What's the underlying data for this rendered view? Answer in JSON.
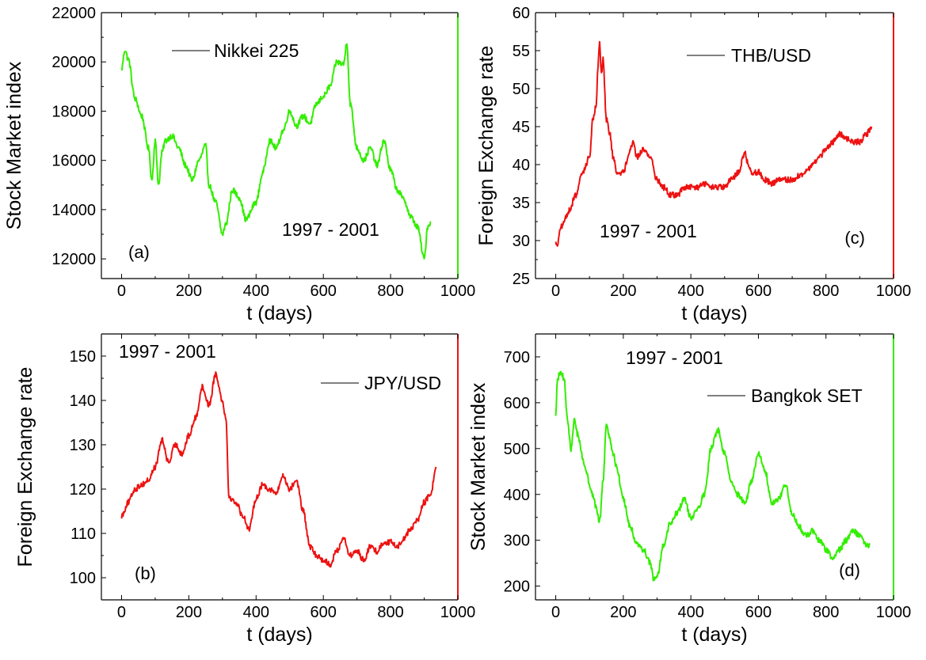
{
  "chart_data": [
    {
      "type": "line",
      "panel_label": "(a)",
      "xlabel": "t (days)",
      "ylabel": "Stock Market index",
      "xlim": [
        -60,
        1000
      ],
      "ylim": [
        11200,
        22000
      ],
      "x_ticks": [
        0,
        200,
        400,
        600,
        800,
        1000
      ],
      "y_ticks": [
        12000,
        14000,
        16000,
        18000,
        20000,
        22000
      ],
      "x_tick_labels": [
        "0",
        "200",
        "400",
        "600",
        "800",
        "1000"
      ],
      "y_tick_labels": [
        "12000",
        "14000",
        "16000",
        "18000",
        "20000",
        "22000"
      ],
      "legend_text": "Nikkei 225",
      "period_text": "1997 - 2001",
      "line_color": "#33ee00",
      "right_axis_color": "#33ee00",
      "series": [
        {
          "name": "Nikkei 225",
          "x": [
            0,
            10,
            20,
            40,
            60,
            80,
            90,
            100,
            110,
            120,
            130,
            150,
            170,
            190,
            210,
            230,
            250,
            260,
            280,
            300,
            310,
            330,
            350,
            370,
            400,
            420,
            440,
            460,
            480,
            500,
            520,
            540,
            560,
            580,
            600,
            620,
            640,
            660,
            670,
            680,
            700,
            720,
            740,
            760,
            780,
            800,
            820,
            840,
            860,
            880,
            900,
            910,
            920
          ],
          "y": [
            19700,
            20500,
            20100,
            18500,
            17800,
            16500,
            15200,
            16800,
            15000,
            16300,
            16800,
            17000,
            16500,
            15800,
            15200,
            16000,
            16600,
            15000,
            14300,
            13000,
            13400,
            14800,
            14500,
            13600,
            14300,
            15500,
            16800,
            16500,
            17200,
            18000,
            17400,
            17800,
            17500,
            18300,
            18600,
            19000,
            20000,
            19900,
            20800,
            18300,
            16500,
            16000,
            16500,
            15800,
            16800,
            15600,
            14800,
            14400,
            13700,
            13300,
            12000,
            13300,
            13500
          ]
        }
      ]
    },
    {
      "type": "line",
      "panel_label": "(b)",
      "xlabel": "t (days)",
      "ylabel": "Foreign Exchange rate",
      "xlim": [
        -60,
        1000
      ],
      "ylim": [
        95,
        155
      ],
      "x_ticks": [
        0,
        200,
        400,
        600,
        800,
        1000
      ],
      "y_ticks": [
        100,
        110,
        120,
        130,
        140,
        150
      ],
      "x_tick_labels": [
        "0",
        "200",
        "400",
        "600",
        "800",
        "1000"
      ],
      "y_tick_labels": [
        "100",
        "110",
        "120",
        "130",
        "140",
        "150"
      ],
      "legend_text": "JPY/USD",
      "period_text": "1997 - 2001",
      "line_color": "#ee1111",
      "right_axis_color": "#ee1111",
      "series": [
        {
          "name": "JPY/USD",
          "x": [
            0,
            20,
            40,
            60,
            80,
            100,
            120,
            140,
            160,
            180,
            200,
            220,
            240,
            260,
            280,
            300,
            310,
            320,
            340,
            360,
            380,
            400,
            420,
            440,
            460,
            480,
            500,
            520,
            540,
            560,
            580,
            600,
            620,
            640,
            660,
            680,
            700,
            720,
            740,
            760,
            780,
            800,
            820,
            840,
            860,
            880,
            900,
            920,
            935
          ],
          "y": [
            114,
            117,
            120,
            121,
            122,
            125,
            131,
            126,
            130,
            128,
            132,
            136,
            143,
            139,
            146,
            140,
            136,
            118,
            117,
            114,
            111,
            118,
            121,
            120,
            119,
            123,
            120,
            122,
            115,
            107,
            105,
            104,
            103,
            106,
            109,
            105,
            106,
            104,
            107,
            106,
            108,
            108,
            107,
            109,
            111,
            113,
            117,
            119,
            125
          ]
        }
      ]
    },
    {
      "type": "line",
      "panel_label": "(c)",
      "xlabel": "t (days)",
      "ylabel": "Foreign Exchange rate",
      "xlim": [
        -60,
        1000
      ],
      "ylim": [
        25,
        60
      ],
      "x_ticks": [
        0,
        200,
        400,
        600,
        800,
        1000
      ],
      "y_ticks": [
        25,
        30,
        35,
        40,
        45,
        50,
        55,
        60
      ],
      "x_tick_labels": [
        "0",
        "200",
        "400",
        "600",
        "800",
        "1000"
      ],
      "y_tick_labels": [
        "25",
        "30",
        "35",
        "40",
        "45",
        "50",
        "55",
        "60"
      ],
      "legend_text": "THB/USD",
      "period_text": "1997 - 2001",
      "line_color": "#ee1111",
      "right_axis_color": "#ee1111",
      "series": [
        {
          "name": "THB/USD",
          "x": [
            0,
            5,
            10,
            20,
            40,
            60,
            80,
            100,
            110,
            120,
            125,
            130,
            135,
            140,
            150,
            160,
            170,
            180,
            200,
            220,
            230,
            240,
            260,
            280,
            300,
            320,
            340,
            360,
            380,
            400,
            420,
            440,
            460,
            480,
            500,
            520,
            540,
            560,
            570,
            580,
            600,
            620,
            640,
            660,
            680,
            700,
            720,
            740,
            760,
            780,
            800,
            820,
            840,
            860,
            880,
            900,
            920,
            935
          ],
          "y": [
            30,
            29,
            31,
            32,
            34,
            36,
            39,
            41,
            46,
            48,
            53,
            56,
            52,
            54,
            46,
            44,
            41,
            39,
            39,
            42,
            43,
            41,
            42,
            41,
            38,
            37,
            36,
            36,
            37,
            37,
            37,
            37.5,
            37,
            37,
            37,
            38,
            39,
            41.5,
            40,
            39,
            39,
            38,
            37.5,
            38,
            38,
            38,
            38.5,
            39,
            40,
            41,
            42,
            43,
            44,
            43.5,
            43,
            43,
            44,
            45
          ]
        }
      ]
    },
    {
      "type": "line",
      "panel_label": "(d)",
      "xlabel": "t (days)",
      "ylabel": "Stock Market index",
      "xlim": [
        -60,
        1000
      ],
      "ylim": [
        170,
        750
      ],
      "x_ticks": [
        0,
        200,
        400,
        600,
        800,
        1000
      ],
      "y_ticks": [
        200,
        300,
        400,
        500,
        600,
        700
      ],
      "x_tick_labels": [
        "0",
        "200",
        "400",
        "600",
        "800",
        "1000"
      ],
      "y_tick_labels": [
        "200",
        "300",
        "400",
        "500",
        "600",
        "700"
      ],
      "legend_text": "Bangkok SET",
      "period_text": "1997 - 2001",
      "line_color": "#33ee00",
      "right_axis_color": "#33ee00",
      "series": [
        {
          "name": "Bangkok SET",
          "x": [
            0,
            5,
            15,
            25,
            35,
            45,
            55,
            65,
            80,
            90,
            100,
            110,
            120,
            130,
            140,
            150,
            160,
            170,
            180,
            200,
            220,
            240,
            260,
            280,
            290,
            300,
            320,
            340,
            360,
            380,
            400,
            420,
            440,
            460,
            480,
            500,
            520,
            540,
            560,
            580,
            600,
            620,
            640,
            660,
            680,
            700,
            720,
            740,
            760,
            780,
            800,
            820,
            840,
            860,
            880,
            900,
            920,
            930
          ],
          "y": [
            570,
            650,
            670,
            650,
            560,
            500,
            560,
            530,
            480,
            450,
            420,
            400,
            370,
            340,
            430,
            550,
            520,
            490,
            460,
            390,
            330,
            290,
            280,
            250,
            215,
            220,
            290,
            340,
            360,
            390,
            350,
            370,
            400,
            500,
            540,
            490,
            430,
            400,
            380,
            430,
            490,
            450,
            380,
            390,
            420,
            360,
            330,
            310,
            320,
            300,
            280,
            260,
            280,
            300,
            320,
            310,
            290,
            290
          ]
        }
      ]
    }
  ]
}
